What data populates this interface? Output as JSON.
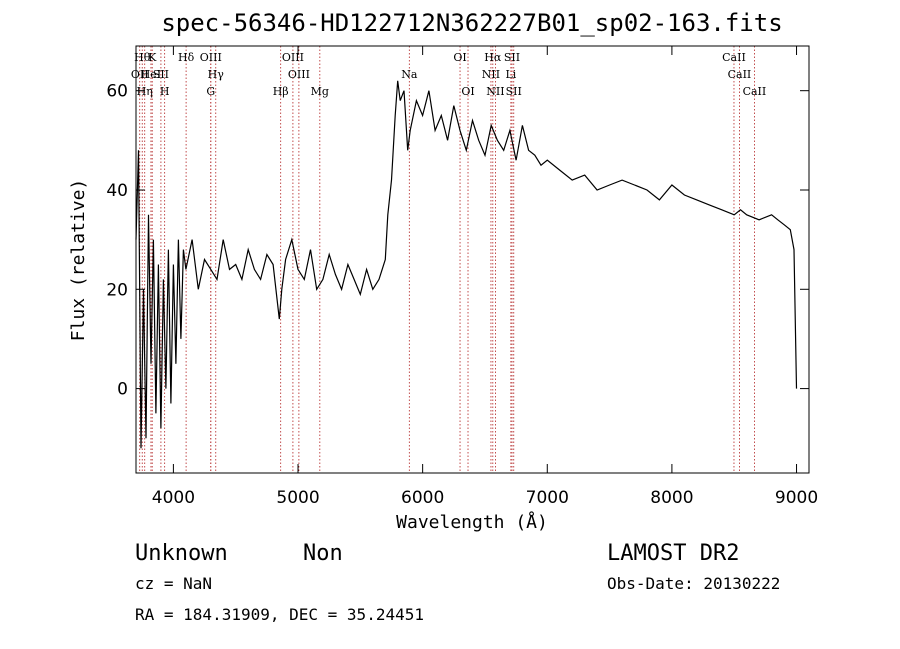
{
  "chart_data": {
    "type": "line",
    "title": "spec-56346-HD122712N362227B01_sp02-163.fits",
    "xlabel": "Wavelength (Å)",
    "ylabel": "Flux (relative)",
    "xlim": [
      3700,
      9100
    ],
    "ylim": [
      -17,
      69
    ],
    "xticks": [
      4000,
      5000,
      6000,
      7000,
      8000,
      9000
    ],
    "yticks": [
      0,
      20,
      40,
      60
    ],
    "series": [
      {
        "x": [
          3700,
          3720,
          3740,
          3760,
          3780,
          3800,
          3820,
          3840,
          3860,
          3880,
          3900,
          3920,
          3940,
          3960,
          3980,
          4000,
          4020,
          4040,
          4060,
          4080,
          4100,
          4150,
          4200,
          4250,
          4300,
          4350,
          4400,
          4450,
          4500,
          4550,
          4600,
          4650,
          4700,
          4750,
          4800,
          4850,
          4870,
          4900,
          4950,
          5000,
          5050,
          5100,
          5150,
          5200,
          5250,
          5300,
          5350,
          5400,
          5450,
          5500,
          5550,
          5600,
          5650,
          5700,
          5720,
          5750,
          5780,
          5800,
          5820,
          5850,
          5880,
          5900,
          5950,
          6000,
          6050,
          6100,
          6150,
          6200,
          6250,
          6300,
          6350,
          6400,
          6450,
          6500,
          6550,
          6600,
          6650,
          6700,
          6750,
          6800,
          6850,
          6900,
          6950,
          7000,
          7100,
          7200,
          7300,
          7400,
          7500,
          7600,
          7700,
          7800,
          7900,
          8000,
          8100,
          8200,
          8300,
          8400,
          8500,
          8550,
          8600,
          8700,
          8800,
          8850,
          8900,
          8950,
          8980,
          9000
        ],
        "y": [
          30,
          48,
          -12,
          20,
          -10,
          35,
          5,
          30,
          -5,
          25,
          -8,
          22,
          0,
          28,
          -3,
          25,
          5,
          30,
          10,
          28,
          24,
          30,
          20,
          26,
          24,
          22,
          30,
          24,
          25,
          22,
          28,
          24,
          22,
          27,
          25,
          14,
          20,
          26,
          30,
          24,
          22,
          28,
          20,
          22,
          27,
          23,
          20,
          25,
          22,
          19,
          24,
          20,
          22,
          26,
          35,
          42,
          55,
          62,
          58,
          60,
          48,
          52,
          58,
          55,
          60,
          52,
          55,
          50,
          57,
          52,
          48,
          54,
          50,
          47,
          53,
          50,
          48,
          52,
          46,
          53,
          48,
          47,
          45,
          46,
          44,
          42,
          43,
          40,
          41,
          42,
          41,
          40,
          38,
          41,
          39,
          38,
          37,
          36,
          35,
          36,
          35,
          34,
          35,
          34,
          33,
          32,
          28,
          0
        ]
      }
    ],
    "lines": [
      {
        "wl": 3750,
        "label": "Hθ",
        "row": 0
      },
      {
        "wl": 3730,
        "label": "OII",
        "row": 1
      },
      {
        "wl": 3770,
        "label": "Hη",
        "row": 2
      },
      {
        "wl": 3830,
        "label": "K",
        "row": 0
      },
      {
        "wl": 3820,
        "label": "HeI",
        "row": 1
      },
      {
        "wl": 3900,
        "label": "SII",
        "row": 1
      },
      {
        "wl": 3930,
        "label": "H",
        "row": 2
      },
      {
        "wl": 4102,
        "label": "Hδ",
        "row": 0
      },
      {
        "wl": 4300,
        "label": "OIII",
        "row": 0
      },
      {
        "wl": 4340,
        "label": "Hγ",
        "row": 1
      },
      {
        "wl": 4300,
        "label": "G",
        "row": 2
      },
      {
        "wl": 4861,
        "label": "Hβ",
        "row": 2
      },
      {
        "wl": 4959,
        "label": "OIII",
        "row": 0
      },
      {
        "wl": 5007,
        "label": "OIII",
        "row": 1
      },
      {
        "wl": 5175,
        "label": "Mg",
        "row": 2
      },
      {
        "wl": 5893,
        "label": "Na",
        "row": 1
      },
      {
        "wl": 6300,
        "label": "OI",
        "row": 0
      },
      {
        "wl": 6364,
        "label": "OI",
        "row": 2
      },
      {
        "wl": 6563,
        "label": "Hα",
        "row": 0
      },
      {
        "wl": 6548,
        "label": "NII",
        "row": 1
      },
      {
        "wl": 6584,
        "label": "NII",
        "row": 2
      },
      {
        "wl": 6717,
        "label": "SII",
        "row": 0
      },
      {
        "wl": 6708,
        "label": "Li",
        "row": 1
      },
      {
        "wl": 6731,
        "label": "SII",
        "row": 2
      },
      {
        "wl": 8498,
        "label": "CaII",
        "row": 0
      },
      {
        "wl": 8542,
        "label": "CaII",
        "row": 1
      },
      {
        "wl": 8662,
        "label": "CaII",
        "row": 2
      }
    ]
  },
  "info": {
    "class_name": "Unknown",
    "subclass": "Non",
    "survey": "LAMOST DR2",
    "cz": "cz = NaN",
    "obs_date": "Obs-Date: 20130222",
    "coords": "RA = 184.31909, DEC =  35.24451"
  },
  "colors": {
    "spectrum": "#000000",
    "line_marker": "#b22222"
  }
}
